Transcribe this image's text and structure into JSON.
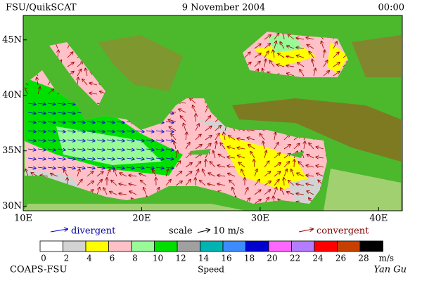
{
  "header": {
    "source": "FSU/QuikSCAT",
    "date": "9 November 2004",
    "time": "00:00"
  },
  "map": {
    "lonlim": [
      10,
      42
    ],
    "latlim": [
      29.6,
      47.2
    ],
    "lon_ticks": [
      {
        "value": 10,
        "label": "10E"
      },
      {
        "value": 20,
        "label": "20E"
      },
      {
        "value": 30,
        "label": "30E"
      },
      {
        "value": 40,
        "label": "40E"
      }
    ],
    "lat_ticks": [
      {
        "value": 45,
        "label": "45N"
      },
      {
        "value": 40,
        "label": "40N"
      },
      {
        "value": 35,
        "label": "35N"
      },
      {
        "value": 30,
        "label": "30N"
      }
    ]
  },
  "legend": {
    "divergent": "divergent",
    "scale": "scale",
    "scale_value": "10 m/s",
    "convergent": "convergent"
  },
  "colorbar": {
    "levels": [
      0,
      2,
      4,
      6,
      8,
      10,
      12,
      14,
      16,
      18,
      20,
      22,
      24,
      26,
      28
    ],
    "colors": [
      "#ffffff",
      "#d3d3d3",
      "#ffff00",
      "#ffc0c8",
      "#98fb98",
      "#00e000",
      "#a0a0a0",
      "#00b4b4",
      "#3c8cff",
      "#0000d0",
      "#ff66ff",
      "#b47cff",
      "#ff0000",
      "#c84000",
      "#000000"
    ],
    "units": "m/s",
    "label": "Speed"
  },
  "footer": {
    "left": "COAPS-FSU",
    "right": "Yan Gu"
  }
}
